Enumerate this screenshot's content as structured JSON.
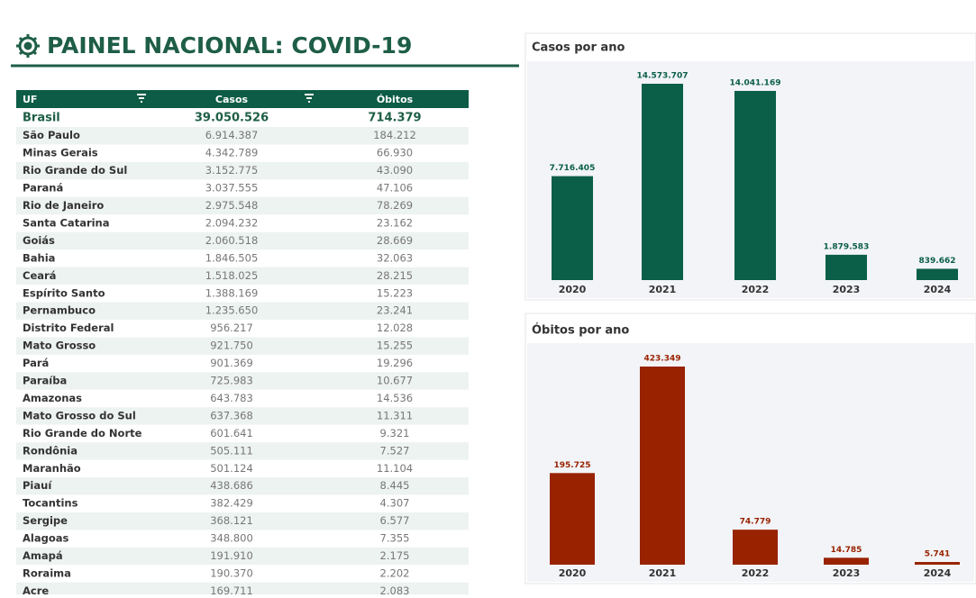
{
  "header": {
    "title": "PAINEL NACIONAL: COVID-19"
  },
  "table": {
    "columns": [
      "UF",
      "Casos",
      "Óbitos"
    ],
    "total": [
      "Brasil",
      "39.050.526",
      "714.379"
    ],
    "rows": [
      [
        "São Paulo",
        "6.914.387",
        "184.212"
      ],
      [
        "Minas Gerais",
        "4.342.789",
        "66.930"
      ],
      [
        "Rio Grande do Sul",
        "3.152.775",
        "43.090"
      ],
      [
        "Paraná",
        "3.037.555",
        "47.106"
      ],
      [
        "Rio de Janeiro",
        "2.975.548",
        "78.269"
      ],
      [
        "Santa Catarina",
        "2.094.232",
        "23.162"
      ],
      [
        "Goiás",
        "2.060.518",
        "28.669"
      ],
      [
        "Bahia",
        "1.846.505",
        "32.063"
      ],
      [
        "Ceará",
        "1.518.025",
        "28.215"
      ],
      [
        "Espírito Santo",
        "1.388.169",
        "15.223"
      ],
      [
        "Pernambuco",
        "1.235.650",
        "23.241"
      ],
      [
        "Distrito Federal",
        "956.217",
        "12.028"
      ],
      [
        "Mato Grosso",
        "921.750",
        "15.255"
      ],
      [
        "Pará",
        "901.369",
        "19.296"
      ],
      [
        "Paraíba",
        "725.983",
        "10.677"
      ],
      [
        "Amazonas",
        "643.783",
        "14.536"
      ],
      [
        "Mato Grosso do Sul",
        "637.368",
        "11.311"
      ],
      [
        "Rio Grande do Norte",
        "601.641",
        "9.321"
      ],
      [
        "Rondônia",
        "505.111",
        "7.527"
      ],
      [
        "Maranhão",
        "501.124",
        "11.104"
      ],
      [
        "Piauí",
        "438.686",
        "8.445"
      ],
      [
        "Tocantins",
        "382.429",
        "4.307"
      ],
      [
        "Sergipe",
        "368.121",
        "6.577"
      ],
      [
        "Alagoas",
        "348.800",
        "7.355"
      ],
      [
        "Amapá",
        "191.910",
        "2.175"
      ],
      [
        "Roraima",
        "190.370",
        "2.202"
      ],
      [
        "Acre",
        "169.711",
        "2.083"
      ]
    ]
  },
  "chart_data": [
    {
      "type": "bar",
      "title": "Casos por ano",
      "categories": [
        "2020",
        "2021",
        "2022",
        "2023",
        "2024"
      ],
      "values": [
        7716405,
        14573707,
        14041169,
        1879583,
        839662
      ],
      "value_labels": [
        "7.716.405",
        "14.573.707",
        "14.041.169",
        "1.879.583",
        "839.662"
      ],
      "color": "#0b5e48"
    },
    {
      "type": "bar",
      "title": "Óbitos por ano",
      "categories": [
        "2020",
        "2021",
        "2022",
        "2023",
        "2024"
      ],
      "values": [
        195725,
        423349,
        74779,
        14785,
        5741
      ],
      "value_labels": [
        "195.725",
        "423.349",
        "74.779",
        "14.785",
        "5.741"
      ],
      "color": "#992200"
    }
  ]
}
